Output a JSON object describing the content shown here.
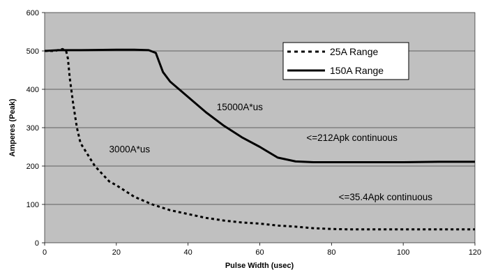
{
  "chart_data": {
    "type": "line",
    "title": "",
    "xlabel": "Pulse Width (usec)",
    "ylabel": "Amperes (Peak)",
    "xlim": [
      0,
      120
    ],
    "ylim": [
      0,
      600
    ],
    "x_ticks": [
      "0",
      "20",
      "40",
      "60",
      "80",
      "100",
      "120"
    ],
    "y_ticks": [
      "0",
      "100",
      "200",
      "300",
      "400",
      "500",
      "600"
    ],
    "grid": "horizontal",
    "background": "#c0c0c0",
    "legend_position": "top-right",
    "series": [
      {
        "name": "25A Range",
        "style": "dashed",
        "color": "#000000",
        "points": [
          [
            0,
            500
          ],
          [
            3,
            500
          ],
          [
            4,
            503
          ],
          [
            5,
            505
          ],
          [
            6,
            500
          ],
          [
            6.5,
            480
          ],
          [
            7,
            430
          ],
          [
            8,
            360
          ],
          [
            9,
            300
          ],
          [
            10,
            260
          ],
          [
            12,
            230
          ],
          [
            14,
            200
          ],
          [
            16,
            180
          ],
          [
            18,
            160
          ],
          [
            20,
            150
          ],
          [
            25,
            120
          ],
          [
            30,
            100
          ],
          [
            35,
            85
          ],
          [
            40,
            75
          ],
          [
            45,
            65
          ],
          [
            50,
            58
          ],
          [
            55,
            53
          ],
          [
            60,
            50
          ],
          [
            65,
            45
          ],
          [
            70,
            42
          ],
          [
            75,
            38
          ],
          [
            80,
            36
          ],
          [
            85,
            35
          ],
          [
            90,
            35
          ],
          [
            100,
            35
          ],
          [
            110,
            35
          ],
          [
            120,
            35
          ]
        ]
      },
      {
        "name": "150A Range",
        "style": "solid",
        "color": "#000000",
        "points": [
          [
            0,
            500
          ],
          [
            4,
            502
          ],
          [
            10,
            502
          ],
          [
            20,
            503
          ],
          [
            25,
            503
          ],
          [
            29,
            502
          ],
          [
            31,
            495
          ],
          [
            32,
            470
          ],
          [
            33,
            445
          ],
          [
            35,
            420
          ],
          [
            40,
            380
          ],
          [
            45,
            340
          ],
          [
            50,
            305
          ],
          [
            55,
            275
          ],
          [
            60,
            250
          ],
          [
            65,
            222
          ],
          [
            70,
            212
          ],
          [
            75,
            210
          ],
          [
            80,
            210
          ],
          [
            90,
            210
          ],
          [
            100,
            210
          ],
          [
            110,
            211
          ],
          [
            120,
            211
          ]
        ]
      }
    ],
    "annotations": [
      {
        "text": "3000A*us",
        "x": 18,
        "y": 245
      },
      {
        "text": "15000A*us",
        "x": 48,
        "y": 355
      },
      {
        "text": "<=212Apk continuous",
        "x": 73,
        "y": 275
      },
      {
        "text": "<=35.4Apk continuous",
        "x": 82,
        "y": 120
      }
    ]
  }
}
